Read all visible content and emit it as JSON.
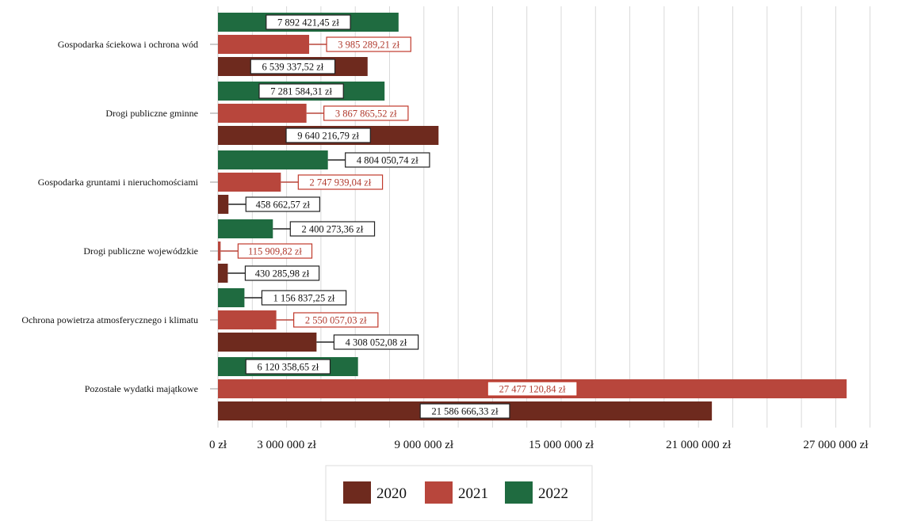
{
  "chart_data": {
    "type": "bar",
    "orientation": "horizontal",
    "categories": [
      "Gospodarka ściekowa i ochrona wód",
      "Drogi publiczne gminne",
      "Gospodarka gruntami i nieruchomościami",
      "Drogi publiczne wojewódzkie",
      "Ochrona powietrza atmosferycznego i klimatu",
      "Pozostałe wydatki majątkowe"
    ],
    "series": [
      {
        "name": "2020",
        "color": "#6e2a1e",
        "values": [
          6539337.52,
          9640216.79,
          458662.57,
          430285.98,
          4308052.08,
          21586666.33
        ],
        "labels": [
          "6 539 337,52 zł",
          "9 640 216,79 zł",
          "458 662,57 zł",
          "430 285,98 zł",
          "4 308 052,08 zł",
          "21 586 666,33 zł"
        ]
      },
      {
        "name": "2021",
        "color": "#b8463c",
        "values": [
          3985289.21,
          3867865.52,
          2747939.04,
          115909.82,
          2550057.03,
          27477120.84
        ],
        "labels": [
          "3 985 289,21 zł",
          "3 867 865,52 zł",
          "2 747 939,04 zł",
          "115 909,82 zł",
          "2 550 057,03 zł",
          "27 477 120,84 zł"
        ]
      },
      {
        "name": "2022",
        "color": "#1f6b40",
        "values": [
          7892421.45,
          7281584.31,
          4804050.74,
          2400273.36,
          1156837.25,
          6120358.65
        ],
        "labels": [
          "7 892 421,45 zł",
          "7 281 584,31 zł",
          "4 804 050,74 zł",
          "2 400 273,36 zł",
          "1 156 837,25 zł",
          "6 120 358,65 zł"
        ]
      }
    ],
    "x_ticks": [
      0,
      3000000,
      9000000,
      15000000,
      21000000,
      27000000
    ],
    "x_tick_labels": [
      "0 zł",
      "3 000 000 zł",
      "9 000 000 zł",
      "15 000 000 zł",
      "21 000 000 zł",
      "27 000 000 zł"
    ],
    "xlim": [
      0,
      30000000
    ],
    "grid": true,
    "legend": {
      "position": "bottom",
      "entries": [
        "2020",
        "2021",
        "2022"
      ]
    }
  }
}
